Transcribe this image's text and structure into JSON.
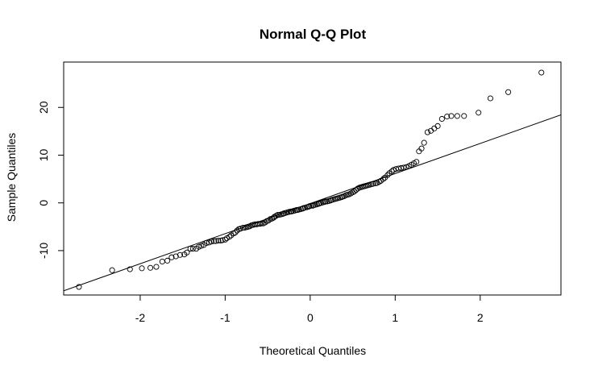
{
  "chart_data": {
    "type": "scatter",
    "title": "Normal Q-Q Plot",
    "xlabel": "Theoretical Quantiles",
    "ylabel": "Sample Quantiles",
    "xlim": [
      -2.9,
      2.95
    ],
    "ylim": [
      -19.3,
      29.5
    ],
    "x_ticks": [
      -2,
      -1,
      0,
      1,
      2
    ],
    "x_tick_labels": [
      "-2",
      "-1",
      "0",
      "1",
      "2"
    ],
    "y_ticks": [
      -10,
      0,
      10,
      20
    ],
    "y_tick_labels": [
      "-10",
      "0",
      "10",
      "20"
    ],
    "reference_line": {
      "slope": 6.3,
      "intercept": -0.15
    },
    "marker": "open-circle",
    "points": [
      [
        -2.72,
        -17.6
      ],
      [
        -2.33,
        -14.1
      ],
      [
        -2.12,
        -13.9
      ],
      [
        -1.98,
        -13.7
      ],
      [
        -1.88,
        -13.6
      ],
      [
        -1.81,
        -13.4
      ],
      [
        -1.74,
        -12.3
      ],
      [
        -1.68,
        -12.1
      ],
      [
        -1.63,
        -11.4
      ],
      [
        -1.58,
        -11.2
      ],
      [
        -1.53,
        -10.9
      ],
      [
        -1.48,
        -10.8
      ],
      [
        -1.45,
        -10.4
      ],
      [
        -1.41,
        -9.6
      ],
      [
        -1.38,
        -9.6
      ],
      [
        -1.34,
        -9.6
      ],
      [
        -1.31,
        -9.2
      ],
      [
        -1.28,
        -9.0
      ],
      [
        -1.25,
        -8.8
      ],
      [
        -1.22,
        -8.4
      ],
      [
        -1.19,
        -8.3
      ],
      [
        -1.16,
        -8.1
      ],
      [
        -1.13,
        -8.0
      ],
      [
        -1.11,
        -8.0
      ],
      [
        -1.08,
        -7.9
      ],
      [
        -1.05,
        -7.9
      ],
      [
        -1.03,
        -7.8
      ],
      [
        -1.0,
        -7.7
      ],
      [
        -0.98,
        -7.4
      ],
      [
        -0.95,
        -7.1
      ],
      [
        -0.93,
        -6.8
      ],
      [
        -0.9,
        -6.4
      ],
      [
        -0.88,
        -6.2
      ],
      [
        -0.86,
        -5.8
      ],
      [
        -0.84,
        -5.5
      ],
      [
        -0.82,
        -5.4
      ],
      [
        -0.79,
        -5.2
      ],
      [
        -0.77,
        -5.2
      ],
      [
        -0.75,
        -5.1
      ],
      [
        -0.73,
        -5.0
      ],
      [
        -0.71,
        -4.9
      ],
      [
        -0.69,
        -4.7
      ],
      [
        -0.67,
        -4.6
      ],
      [
        -0.65,
        -4.5
      ],
      [
        -0.63,
        -4.5
      ],
      [
        -0.61,
        -4.4
      ],
      [
        -0.59,
        -4.4
      ],
      [
        -0.57,
        -4.3
      ],
      [
        -0.55,
        -4.3
      ],
      [
        -0.53,
        -4.1
      ],
      [
        -0.51,
        -3.8
      ],
      [
        -0.49,
        -3.7
      ],
      [
        -0.47,
        -3.4
      ],
      [
        -0.45,
        -3.3
      ],
      [
        -0.43,
        -3.1
      ],
      [
        -0.42,
        -2.9
      ],
      [
        -0.4,
        -2.7
      ],
      [
        -0.38,
        -2.5
      ],
      [
        -0.36,
        -2.5
      ],
      [
        -0.34,
        -2.4
      ],
      [
        -0.32,
        -2.3
      ],
      [
        -0.31,
        -2.2
      ],
      [
        -0.29,
        -2.1
      ],
      [
        -0.27,
        -2.0
      ],
      [
        -0.25,
        -1.9
      ],
      [
        -0.23,
        -1.8
      ],
      [
        -0.22,
        -1.8
      ],
      [
        -0.2,
        -1.7
      ],
      [
        -0.18,
        -1.6
      ],
      [
        -0.16,
        -1.5
      ],
      [
        -0.15,
        -1.5
      ],
      [
        -0.13,
        -1.4
      ],
      [
        -0.11,
        -1.3
      ],
      [
        -0.09,
        -1.2
      ],
      [
        -0.08,
        -1.1
      ],
      [
        -0.06,
        -1.0
      ],
      [
        -0.04,
        -0.9
      ],
      [
        -0.02,
        -0.8
      ],
      [
        -0.01,
        -0.7
      ],
      [
        0.01,
        -0.6
      ],
      [
        0.03,
        -0.6
      ],
      [
        0.04,
        -0.5
      ],
      [
        0.06,
        -0.4
      ],
      [
        0.08,
        -0.3
      ],
      [
        0.1,
        -0.2
      ],
      [
        0.11,
        -0.1
      ],
      [
        0.13,
        0.0
      ],
      [
        0.15,
        0.1
      ],
      [
        0.17,
        0.2
      ],
      [
        0.18,
        0.3
      ],
      [
        0.2,
        0.3
      ],
      [
        0.22,
        0.4
      ],
      [
        0.24,
        0.5
      ],
      [
        0.25,
        0.6
      ],
      [
        0.27,
        0.7
      ],
      [
        0.29,
        0.8
      ],
      [
        0.31,
        0.9
      ],
      [
        0.33,
        1.0
      ],
      [
        0.35,
        1.1
      ],
      [
        0.37,
        1.2
      ],
      [
        0.38,
        1.3
      ],
      [
        0.4,
        1.4
      ],
      [
        0.42,
        1.6
      ],
      [
        0.44,
        1.7
      ],
      [
        0.46,
        1.8
      ],
      [
        0.48,
        2.0
      ],
      [
        0.5,
        2.2
      ],
      [
        0.52,
        2.4
      ],
      [
        0.54,
        2.7
      ],
      [
        0.56,
        3.0
      ],
      [
        0.58,
        3.2
      ],
      [
        0.6,
        3.3
      ],
      [
        0.62,
        3.4
      ],
      [
        0.64,
        3.5
      ],
      [
        0.66,
        3.6
      ],
      [
        0.68,
        3.7
      ],
      [
        0.7,
        3.8
      ],
      [
        0.72,
        3.9
      ],
      [
        0.74,
        4.0
      ],
      [
        0.77,
        4.1
      ],
      [
        0.79,
        4.2
      ],
      [
        0.81,
        4.4
      ],
      [
        0.83,
        4.6
      ],
      [
        0.86,
        5.0
      ],
      [
        0.88,
        5.3
      ],
      [
        0.91,
        5.8
      ],
      [
        0.93,
        6.2
      ],
      [
        0.96,
        6.6
      ],
      [
        0.98,
        6.9
      ],
      [
        1.01,
        7.1
      ],
      [
        1.04,
        7.2
      ],
      [
        1.07,
        7.3
      ],
      [
        1.1,
        7.4
      ],
      [
        1.13,
        7.5
      ],
      [
        1.16,
        7.7
      ],
      [
        1.19,
        8.0
      ],
      [
        1.22,
        8.3
      ],
      [
        1.25,
        8.6
      ],
      [
        1.28,
        10.8
      ],
      [
        1.31,
        11.4
      ],
      [
        1.34,
        12.6
      ],
      [
        1.38,
        14.8
      ],
      [
        1.42,
        15.1
      ],
      [
        1.46,
        15.6
      ],
      [
        1.5,
        16.1
      ],
      [
        1.55,
        17.6
      ],
      [
        1.61,
        18.1
      ],
      [
        1.66,
        18.2
      ],
      [
        1.73,
        18.2
      ],
      [
        1.81,
        18.2
      ],
      [
        1.98,
        18.9
      ],
      [
        2.12,
        21.9
      ],
      [
        2.33,
        23.2
      ],
      [
        2.72,
        27.3
      ]
    ]
  }
}
